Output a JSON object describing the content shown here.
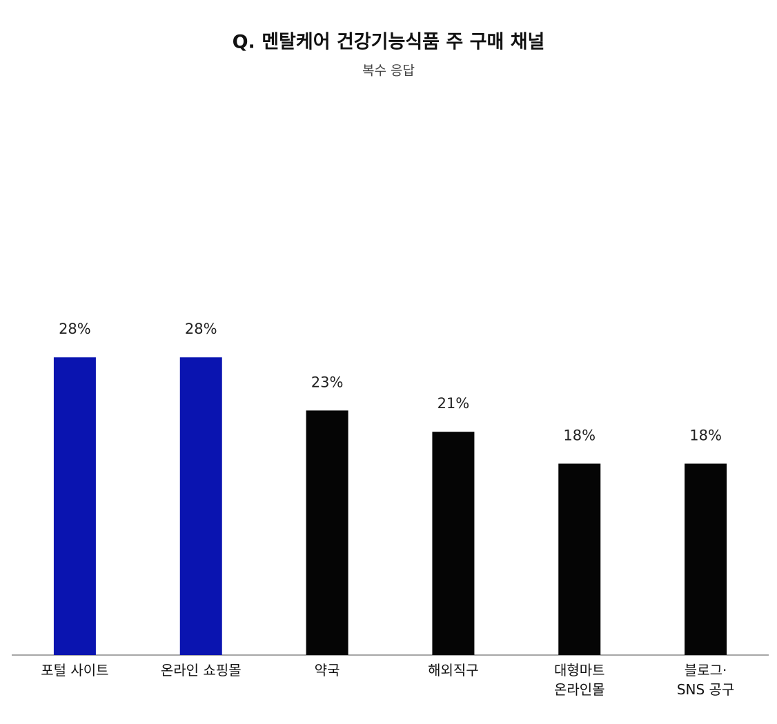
{
  "chart_data": {
    "type": "bar",
    "title": "Q. 멘탈케어 건강기능식품 주 구매 채널",
    "subtitle": "복수 응답",
    "categories": [
      "포털 사이트",
      "온라인 쇼핑몰",
      "약국",
      "해외직구",
      "대형마트\n온라인몰",
      "블로그·\nSNS 공구"
    ],
    "values": [
      28,
      28,
      23,
      21,
      18,
      18
    ],
    "value_labels": [
      "28%",
      "28%",
      "23%",
      "21%",
      "18%",
      "18%"
    ],
    "colors": [
      "#0a14b0",
      "#0a14b0",
      "#050505",
      "#050505",
      "#050505",
      "#050505"
    ],
    "ylim": [
      0,
      50
    ]
  }
}
